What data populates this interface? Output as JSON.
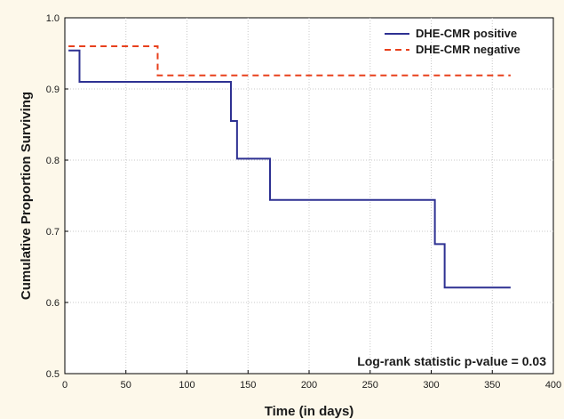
{
  "chart_data": {
    "type": "line",
    "step": true,
    "xlabel": "Time (in days)",
    "ylabel": "Cumulative Proportion Surviving",
    "xlim": [
      0,
      400
    ],
    "ylim": [
      0.5,
      1.0
    ],
    "xticks": [
      "0",
      "50",
      "100",
      "150",
      "200",
      "250",
      "300",
      "350",
      "400"
    ],
    "yticks": [
      "0.5",
      "0.6",
      "0.7",
      "0.8",
      "0.9",
      "1.0"
    ],
    "grid": true,
    "legend_position": "top-right",
    "annotation": "Log-rank statistic p-value = 0.03",
    "series": [
      {
        "name": "DHE-CMR positive",
        "color": "#2e3192",
        "style": "solid",
        "x": [
          3,
          12,
          136,
          141,
          168,
          303,
          311,
          365
        ],
        "y": [
          0.954,
          0.91,
          0.855,
          0.802,
          0.744,
          0.682,
          0.621,
          0.621
        ]
      },
      {
        "name": "DHE-CMR negative",
        "color": "#e8401c",
        "style": "dashed",
        "x": [
          3,
          76,
          365
        ],
        "y": [
          0.96,
          0.919,
          0.919
        ]
      }
    ]
  }
}
